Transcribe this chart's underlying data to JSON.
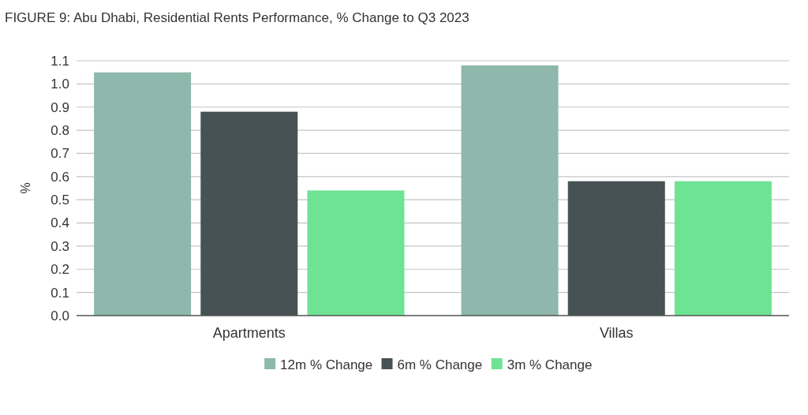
{
  "chart_data": {
    "type": "bar",
    "title": "FIGURE 9: Abu Dhabi, Residential Rents Performance, % Change to Q3 2023",
    "ylabel": "%",
    "categories": [
      "Apartments",
      "Villas"
    ],
    "series": [
      {
        "name": "12m % Change",
        "color": "#8eb8ab",
        "values": [
          1.05,
          1.08
        ]
      },
      {
        "name": "6m % Change",
        "color": "#475254",
        "values": [
          0.88,
          0.58
        ]
      },
      {
        "name": "3m % Change",
        "color": "#6ee394",
        "values": [
          0.54,
          0.58
        ]
      }
    ],
    "ylim": [
      0,
      1.1
    ],
    "yticks": [
      {
        "value": 0,
        "label": "0.0"
      },
      0.1,
      0.2,
      0.3,
      0.4,
      0.5,
      0.6,
      0.7,
      0.8,
      0.9,
      {
        "value": 1,
        "label": "1.0"
      },
      1.1
    ],
    "grid": "y",
    "legend": "bottom"
  }
}
